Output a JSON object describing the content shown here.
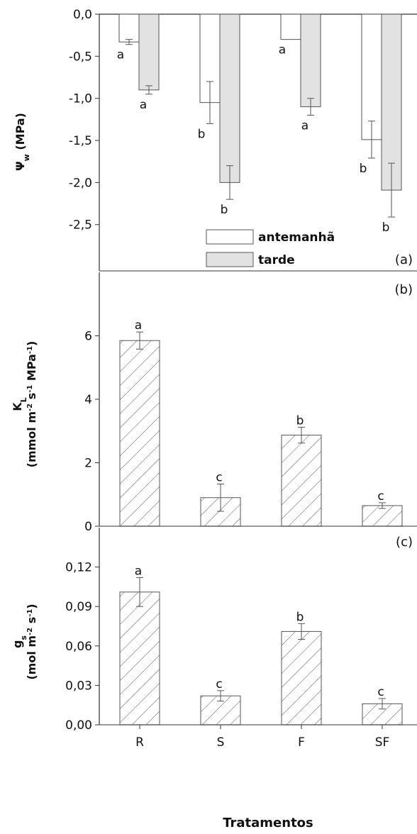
{
  "x_title": "Tratamentos",
  "chart_data": [
    {
      "panel": "(a)",
      "type": "bar",
      "ylabel": "Ψw (MPa)",
      "ylabel_main": "Ψ",
      "ylabel_sub": "w",
      "ylabel_rest": " (MPa)",
      "categories": [
        "R",
        "S",
        "F",
        "SF"
      ],
      "series": [
        {
          "name": "antemanhã",
          "values": [
            -0.33,
            -1.05,
            -0.3,
            -1.49
          ],
          "errors": [
            0.03,
            0.25,
            0.0,
            0.22
          ],
          "labels": [
            "a",
            "b",
            "a",
            "b"
          ]
        },
        {
          "name": "tarde",
          "values": [
            -0.9,
            -2.0,
            -1.1,
            -2.09
          ],
          "errors": [
            0.05,
            0.2,
            0.1,
            0.32
          ],
          "labels": [
            "a",
            "b",
            "a",
            "b"
          ]
        }
      ],
      "ylim": [
        -3.05,
        0
      ],
      "yticks": [
        "0,0",
        "-0,5",
        "-1,0",
        "-1,5",
        "-2,0",
        "-2,5"
      ],
      "ytick_values": [
        0,
        -0.5,
        -1.0,
        -1.5,
        -2.0,
        -2.5
      ],
      "legend": "bottom-right",
      "colors": {
        "antemanha": "#ffffff",
        "tarde": "#e2e2e2"
      }
    },
    {
      "panel": "(b)",
      "type": "bar",
      "ylabel_line1": "KL",
      "ylabel_line1_main": "K",
      "ylabel_line1_sub": "L",
      "ylabel_line2": "(mmol m-2 s-1 MPa-1)",
      "ylabel_line2_p1": "(mmol m",
      "ylabel_line2_p2": "-2",
      "ylabel_line2_p3": " s",
      "ylabel_line2_p4": "-1",
      "ylabel_line2_p5": " MPa",
      "ylabel_line2_p6": "-1",
      "ylabel_line2_p7": ")",
      "categories": [
        "R",
        "S",
        "F",
        "SF"
      ],
      "values": [
        5.85,
        0.9,
        2.87,
        0.65
      ],
      "errors": [
        0.27,
        0.43,
        0.25,
        0.09
      ],
      "labels": [
        "a",
        "c",
        "b",
        "c"
      ],
      "ylim": [
        0,
        8
      ],
      "yticks": [
        "0",
        "2",
        "4",
        "6"
      ],
      "ytick_values": [
        0,
        2,
        4,
        6
      ]
    },
    {
      "panel": "(c)",
      "type": "bar",
      "ylabel_line1": "gs",
      "ylabel_line1_main": "g",
      "ylabel_line1_sub": "s",
      "ylabel_line2": "(mol m-2 s-1)",
      "ylabel_line2_p1": "(mol m",
      "ylabel_line2_p2": "-2",
      "ylabel_line2_p3": " s",
      "ylabel_line2_p4": "-1",
      "ylabel_line2_p5": ")",
      "categories": [
        "R",
        "S",
        "F",
        "SF"
      ],
      "values": [
        0.101,
        0.022,
        0.071,
        0.016
      ],
      "errors": [
        0.011,
        0.004,
        0.006,
        0.004
      ],
      "labels": [
        "a",
        "c",
        "b",
        "c"
      ],
      "ylim": [
        0,
        0.15
      ],
      "yticks": [
        "0,00",
        "0,03",
        "0,06",
        "0,09",
        "0,12"
      ],
      "ytick_values": [
        0,
        0.03,
        0.06,
        0.09,
        0.12
      ]
    }
  ]
}
